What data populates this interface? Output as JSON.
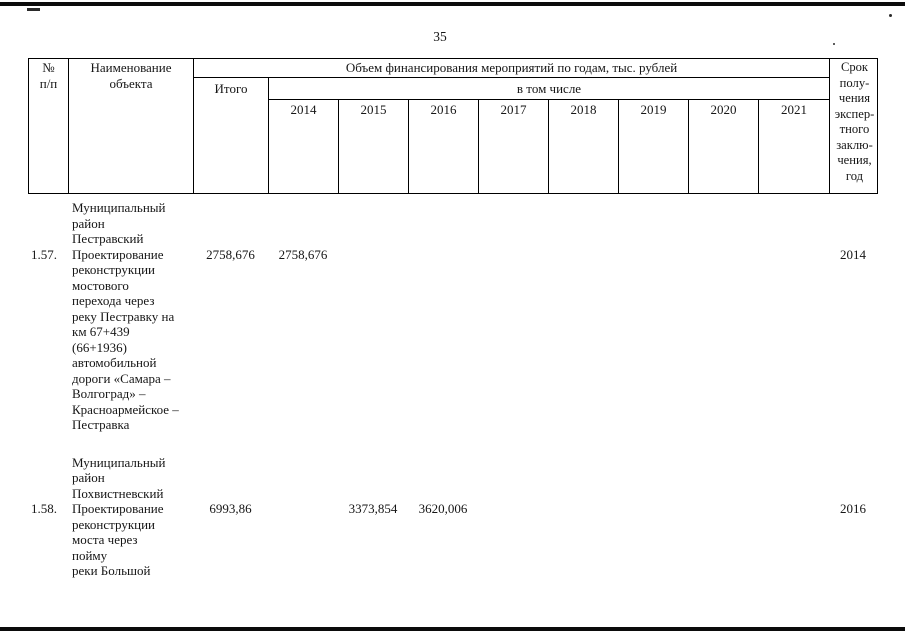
{
  "page": {
    "number": "35"
  },
  "table": {
    "headers": {
      "num": "№\nп/п",
      "name": "Наименование\nобъекта",
      "financing": "Объем финансирования мероприятий по годам, тыс. рублей",
      "total": "Итого",
      "including": "в том числе",
      "years": [
        "2014",
        "2015",
        "2016",
        "2017",
        "2018",
        "2019",
        "2020",
        "2021"
      ],
      "term": "Срок\nполу-\nчения\nэкспер-\nтного\nзаклю-\nчения,\nгод"
    },
    "rows": [
      {
        "num": "1.57.",
        "district": "Муниципальный\nрайон\nПестравский",
        "name": "Проектирование\nреконструкции\nмостового\nперехода через\nреку Пестравку на\nкм 67+439\n(66+1936)\nавтомобильной\nдороги «Самара –\nВолгоград» –\nКрасноармейское –\nПестравка",
        "total": "2758,676",
        "values": [
          "2758,676",
          "",
          "",
          "",
          "",
          "",
          "",
          ""
        ],
        "term": "2014"
      },
      {
        "num": "1.58.",
        "district": "Муниципальный\nрайон\nПохвистневский",
        "name": "Проектирование\nреконструкции\nмоста через\nпойму\nреки Большой",
        "total": "6993,86",
        "values": [
          "",
          "3373,854",
          "3620,006",
          "",
          "",
          "",
          "",
          ""
        ],
        "term": "2016"
      }
    ]
  }
}
